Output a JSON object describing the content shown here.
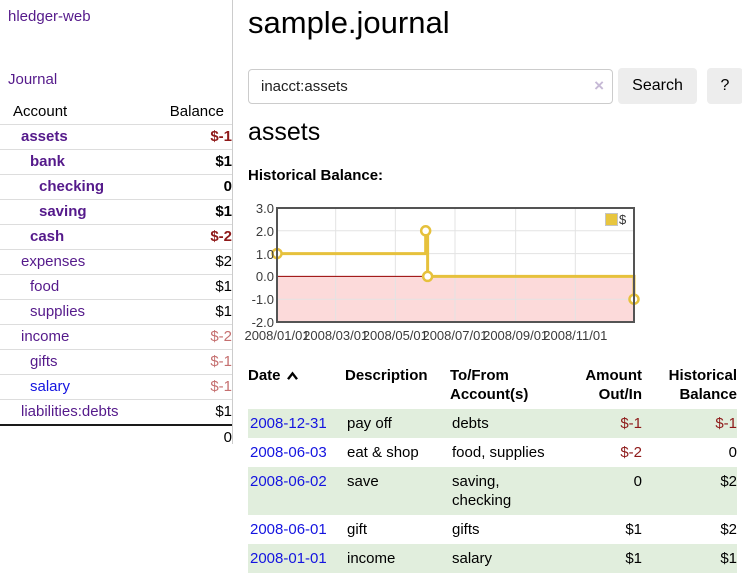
{
  "app_title": "hledger-web",
  "sidebar": {
    "journal_link": "Journal",
    "accounts": {
      "col_account": "Account",
      "col_balance": "Balance",
      "rows": [
        {
          "name": "assets",
          "balance": "$-1"
        },
        {
          "name": "bank",
          "balance": "$1"
        },
        {
          "name": "checking",
          "balance": "0"
        },
        {
          "name": "saving",
          "balance": "$1"
        },
        {
          "name": "cash",
          "balance": "$-2"
        },
        {
          "name": "expenses",
          "balance": "$2"
        },
        {
          "name": "food",
          "balance": "$1"
        },
        {
          "name": "supplies",
          "balance": "$1"
        },
        {
          "name": "income",
          "balance": "$-2"
        },
        {
          "name": "gifts",
          "balance": "$-1"
        },
        {
          "name": "salary",
          "balance": "$-1"
        },
        {
          "name": "liabilities:debts",
          "balance": "$1"
        }
      ],
      "total": "0"
    }
  },
  "main": {
    "title": "sample.journal",
    "search": {
      "value": "inacct:assets",
      "clear": "×",
      "search_button": "Search",
      "help_button": "?"
    },
    "account_heading": "assets",
    "chart_title": "Historical Balance:"
  },
  "chart_data": {
    "type": "line",
    "style": "step",
    "title": "Historical Balance:",
    "series": [
      {
        "name": "$",
        "color": "#e6c13c",
        "points": [
          [
            "2008-01-01",
            1
          ],
          [
            "2008-06-01",
            2
          ],
          [
            "2008-06-03",
            0
          ],
          [
            "2008-12-31",
            -1
          ]
        ]
      }
    ],
    "x_range": [
      "2008-01-01",
      "2008-12-31"
    ],
    "x_ticks": [
      "2008/01/01",
      "2008/03/01",
      "2008/05/01",
      "2008/07/01",
      "2008/09/01",
      "2008/11/01"
    ],
    "y_ticks": [
      3.0,
      2.0,
      1.0,
      0.0,
      -1.0,
      -2.0
    ],
    "ylim": [
      -2,
      3
    ],
    "grid": true,
    "legend_position": "top-right",
    "negative_region_color": "#fcdada",
    "zero_line_color": "#990000"
  },
  "register": {
    "header": {
      "date": "Date",
      "description": "Description",
      "tofrom_l1": "To/From",
      "tofrom_l2": "Account(s)",
      "amount_l1": "Amount",
      "amount_l2": "Out/In",
      "balance_l1": "Historical",
      "balance_l2": "Balance"
    },
    "rows": [
      {
        "date": "2008-12-31",
        "description": "pay off",
        "accounts": "debts",
        "amount": "$-1",
        "balance": "$-1"
      },
      {
        "date": "2008-06-03",
        "description": "eat & shop",
        "accounts": "food, supplies",
        "amount": "$-2",
        "balance": "0"
      },
      {
        "date": "2008-06-02",
        "description": "save",
        "accounts": "saving, checking",
        "amount": "0",
        "balance": "$2"
      },
      {
        "date": "2008-06-01",
        "description": "gift",
        "accounts": "gifts",
        "amount": "$1",
        "balance": "$2"
      },
      {
        "date": "2008-01-01",
        "description": "income",
        "accounts": "salary",
        "amount": "$1",
        "balance": "$1"
      }
    ]
  }
}
